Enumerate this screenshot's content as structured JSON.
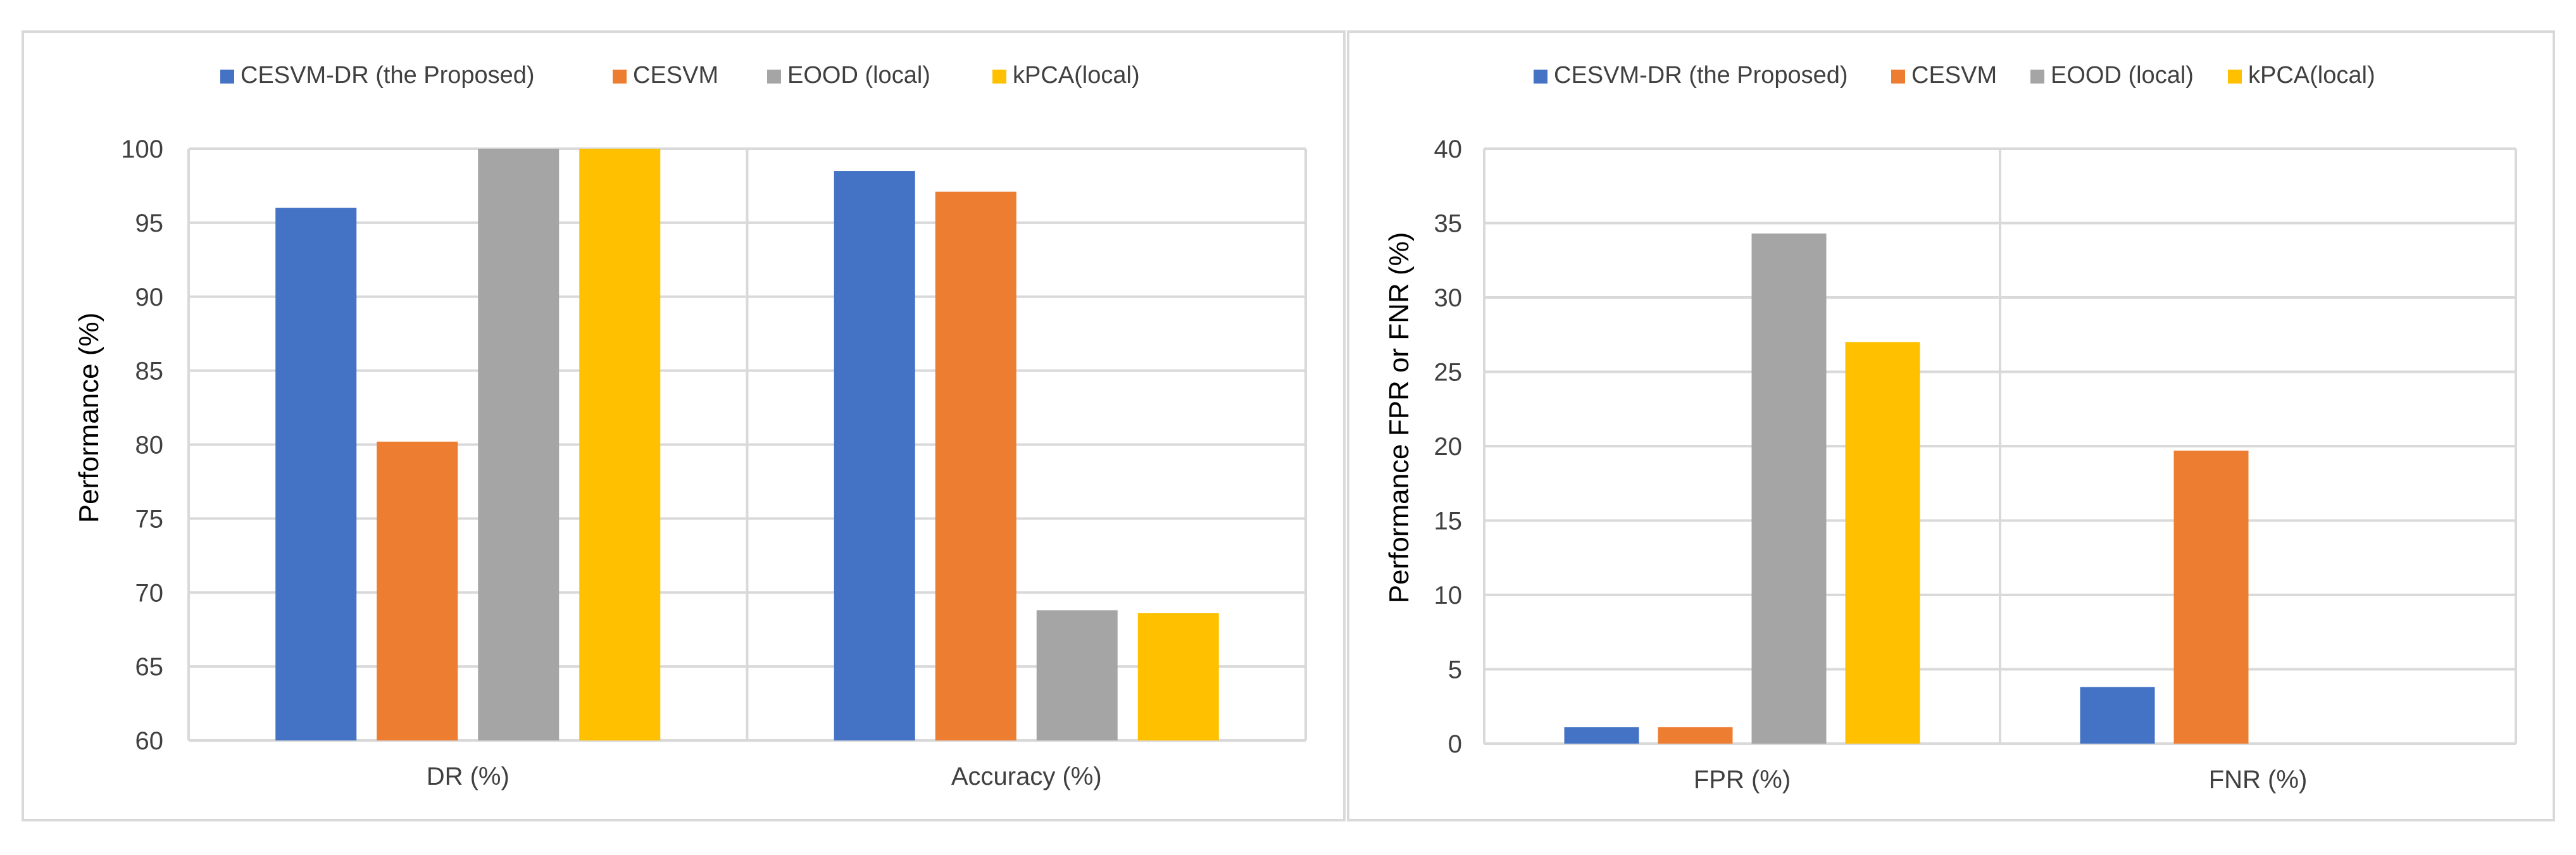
{
  "colors": {
    "series": [
      "#4472C4",
      "#ED7D31",
      "#A5A5A5",
      "#FFC000"
    ],
    "grid": "#D9D9D9",
    "frame": "#D9D9D9",
    "text": "#404040",
    "axis_title": "#000000"
  },
  "legend_labels": [
    "CESVM-DR (the Proposed)",
    "CESVM",
    "EOOD (local)",
    "kPCA(local)"
  ],
  "chart_data": [
    {
      "type": "bar",
      "title": "",
      "xlabel": "",
      "ylabel": "Performance (%)",
      "categories": [
        "DR (%)",
        "Accuracy (%)"
      ],
      "ylim": [
        60,
        100
      ],
      "yticks": [
        60,
        65,
        70,
        75,
        80,
        85,
        90,
        95,
        100
      ],
      "grid": true,
      "legend": "top-center",
      "series": [
        {
          "name": "CESVM-DR (the Proposed)",
          "values": [
            96,
            98.5
          ]
        },
        {
          "name": "CESVM",
          "values": [
            80.2,
            97.1
          ]
        },
        {
          "name": "EOOD (local)",
          "values": [
            100,
            68.8
          ]
        },
        {
          "name": "kPCA(local)",
          "values": [
            100,
            68.6
          ]
        }
      ]
    },
    {
      "type": "bar",
      "title": "",
      "xlabel": "",
      "ylabel": "Performance FPR or FNR (%)",
      "categories": [
        "FPR (%)",
        "FNR (%)"
      ],
      "ylim": [
        0,
        40
      ],
      "yticks": [
        0,
        5,
        10,
        15,
        20,
        25,
        30,
        35,
        40
      ],
      "grid": true,
      "legend": "top-center",
      "series": [
        {
          "name": "CESVM-DR (the Proposed)",
          "values": [
            1.1,
            3.8
          ]
        },
        {
          "name": "CESVM",
          "values": [
            1.1,
            19.7
          ]
        },
        {
          "name": "EOOD (local)",
          "values": [
            34.3,
            0
          ]
        },
        {
          "name": "kPCA(local)",
          "values": [
            27,
            0
          ]
        }
      ]
    }
  ]
}
